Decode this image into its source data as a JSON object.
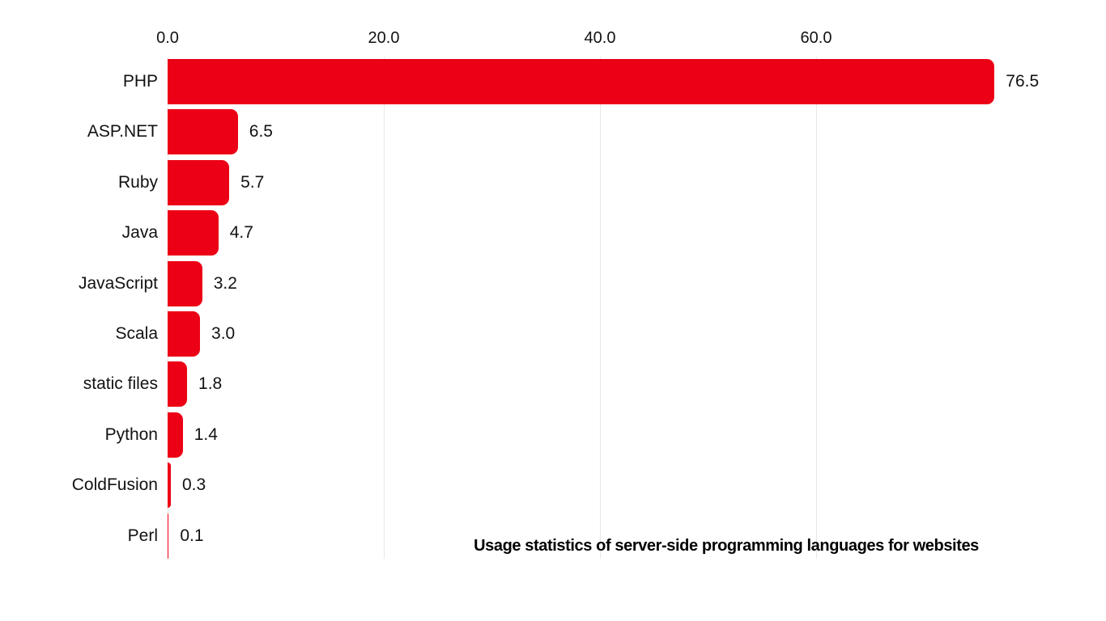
{
  "chart_data": {
    "type": "bar",
    "orientation": "horizontal",
    "title": "Usage statistics of server-side programming languages for websites",
    "categories": [
      "PHP",
      "ASP.NET",
      "Ruby",
      "Java",
      "JavaScript",
      "Scala",
      "static files",
      "Python",
      "ColdFusion",
      "Perl"
    ],
    "values": [
      76.5,
      6.5,
      5.7,
      4.7,
      3.2,
      3.0,
      1.8,
      1.4,
      0.3,
      0.1
    ],
    "value_labels": [
      "76.5",
      "6.5",
      "5.7",
      "4.7",
      "3.2",
      "3.0",
      "1.8",
      "1.4",
      "0.3",
      "0.1"
    ],
    "x_ticks": [
      0,
      20,
      40,
      60
    ],
    "x_tick_labels": [
      "0.0",
      "20.0",
      "40.0",
      "60.0"
    ],
    "xlim": [
      0,
      76.5
    ],
    "xlabel": "",
    "ylabel": "",
    "grid": "vertical-only",
    "legend": "none",
    "axis_position": "top",
    "colors": {
      "bar": "#ec0016",
      "gridline": "#e7e7e7",
      "text": "#121212",
      "title": "#000000",
      "background": "#ffffff"
    }
  }
}
